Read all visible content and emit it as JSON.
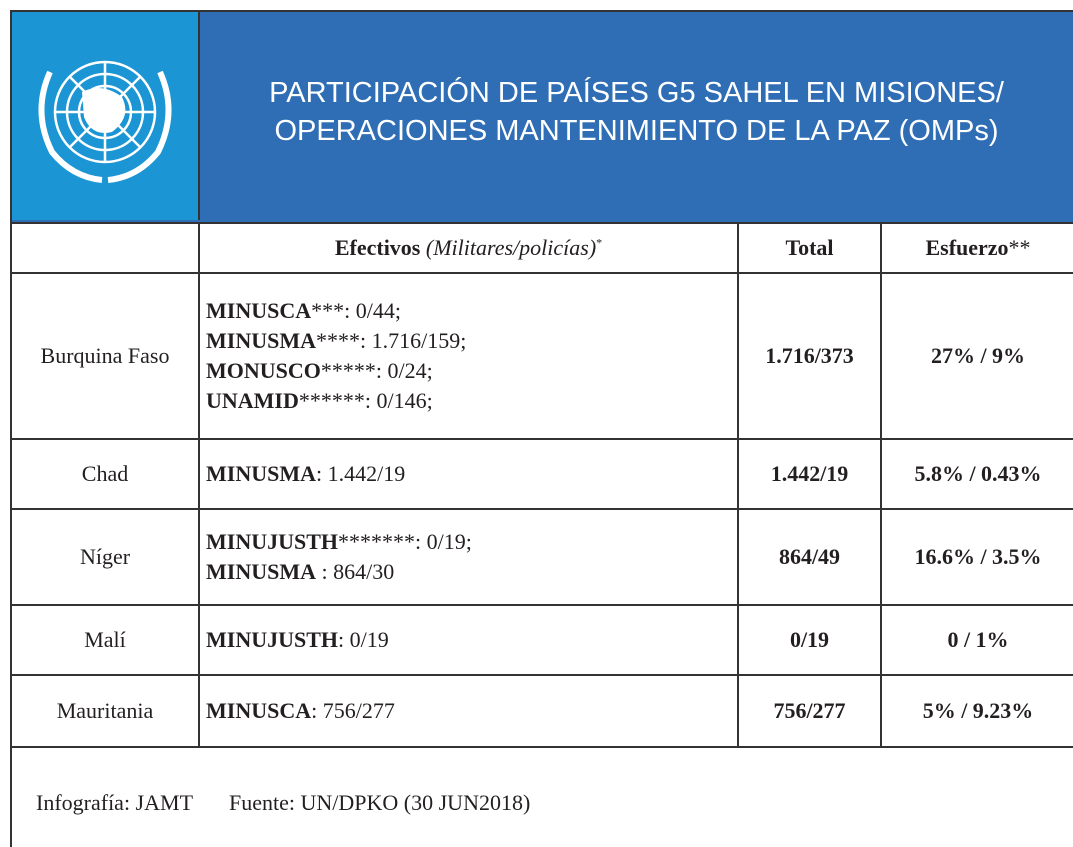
{
  "header": {
    "title_lines": [
      "PARTICIPACIÓN DE PAÍSES G5 SAHEL EN MISIONES/",
      "OPERACIONES MANTENIMIENTO DE LA PAZ (OMPs)"
    ]
  },
  "table": {
    "columns": {
      "efectivos": {
        "bold": "Efectivos",
        "italic": "(Militares/policías)",
        "sup": "*"
      },
      "total": "Total",
      "esfuerzo": {
        "bold": "Esfuerzo",
        "rest": "**"
      }
    },
    "rows": [
      {
        "country": "Burquina Faso",
        "missions": [
          {
            "name": "MINUSCA",
            "rest": "***: 0/44;"
          },
          {
            "name": "MINUSMA",
            "rest": "****: 1.716/159;"
          },
          {
            "name": "MONUSCO",
            "rest": "*****: 0/24;"
          },
          {
            "name": "UNAMID",
            "rest": "******: 0/146;"
          }
        ],
        "total": "1.716/373",
        "effort": "27% / 9%"
      },
      {
        "country": "Chad",
        "missions": [
          {
            "name": "MINUSMA",
            "rest": ": 1.442/19"
          }
        ],
        "total": "1.442/19",
        "effort": "5.8% / 0.43%"
      },
      {
        "country": "Níger",
        "missions": [
          {
            "name": "MINUJUSTH",
            "rest": "*******: 0/19;"
          },
          {
            "name": "MINUSMA",
            "rest": " : 864/30"
          }
        ],
        "total": "864/49",
        "effort": "16.6% / 3.5%"
      },
      {
        "country": "Malí",
        "missions": [
          {
            "name": "MINUJUSTH",
            "rest": ": 0/19"
          }
        ],
        "total": "0/19",
        "effort": "0 / 1%"
      },
      {
        "country": "Mauritania",
        "missions": [
          {
            "name": "MINUSCA",
            "rest": ": 756/277"
          }
        ],
        "total": "756/277",
        "effort": "5% / 9.23%"
      }
    ]
  },
  "footer": {
    "credit": "Infografía: JAMT",
    "source": "Fuente: UN/DPKO (30 JUN2018)"
  }
}
